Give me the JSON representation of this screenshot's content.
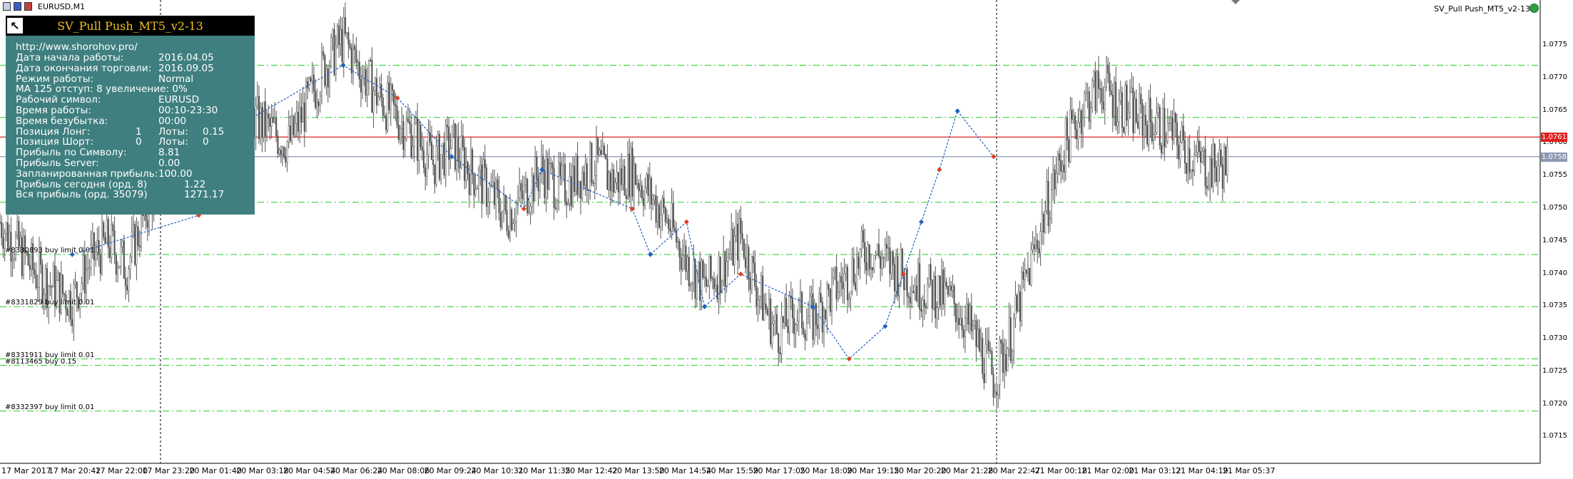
{
  "window": {
    "symbol_label": "EURUSD,M1",
    "ea_name": "SV_Pull Push_MT5_v2-13"
  },
  "panel": {
    "title": "SV_Pull Push_MT5_v2-13",
    "url": "http://www.shorohov.pro/",
    "rows": [
      {
        "label": "Дата начала работы:",
        "value": "2016.04.05"
      },
      {
        "label": "Дата окончания торговли:",
        "value": "2016.09.05"
      },
      {
        "label": "Режим работы:",
        "value": "Normal"
      },
      {
        "label": "МА 125 отступ: 8 увеличение: 0%",
        "value": ""
      },
      {
        "label": "Рабочий символ:",
        "value": "EURUSD"
      },
      {
        "label": "Время работы:",
        "value": "00:10-23:30"
      },
      {
        "label": "Время безубытка:",
        "value": "00:00"
      }
    ],
    "long": {
      "label": "Позиция Лонг:",
      "count": "1",
      "lots_label": "Лоты:",
      "lots": "0.15"
    },
    "short": {
      "label": "Позиция Шорт:",
      "count": "0",
      "lots_label": "Лоты:",
      "lots": "0"
    },
    "rows2": [
      {
        "label": "Прибыль по Символу:",
        "value": "8.81"
      },
      {
        "label": "Прибыль Server:",
        "value": "0.00"
      },
      {
        "label": "Запланированная прибыль:",
        "value": "100.00"
      }
    ],
    "today": {
      "label": "Прибыль сегодня (орд. 8)",
      "value": "1.22"
    },
    "total": {
      "label": "Вся прибыль (орд. 35079)",
      "value": "1271.17"
    }
  },
  "orders": [
    {
      "label": "#8330893 buy limit 0.01",
      "price": 1.0743
    },
    {
      "label": "#8331829 buy limit 0.01",
      "price": 1.0735
    },
    {
      "label": "#8331911 buy limit 0.01",
      "price": 1.0727
    },
    {
      "label": "#8113465 buy 0.15",
      "price": 1.0726
    },
    {
      "label": "#8332397 buy limit 0.01",
      "price": 1.0719
    }
  ],
  "chart_data": {
    "type": "candlestick",
    "symbol": "EURUSD",
    "timeframe": "M1",
    "x_ticks": [
      "17 Mar 2017",
      "17 Mar 20:42",
      "17 Mar 22:00",
      "17 Mar 23:20",
      "20 Mar 01:40",
      "20 Mar 03:18",
      "20 Mar 04:54",
      "20 Mar 06:24",
      "20 Mar 08:06",
      "20 Mar 09:24",
      "20 Mar 10:31",
      "20 Mar 11:35",
      "20 Mar 12:42",
      "20 Mar 13:50",
      "20 Mar 14:54",
      "20 Mar 15:59",
      "20 Mar 17:05",
      "20 Mar 18:09",
      "20 Mar 19:15",
      "20 Mar 20:20",
      "20 Mar 21:28",
      "20 Mar 22:47",
      "21 Mar 00:18",
      "21 Mar 02:00",
      "21 Mar 03:12",
      "21 Mar 04:19",
      "21 Mar 05:37"
    ],
    "y_ticks": [
      "1.0775",
      "1.0770",
      "1.0765",
      "1.0760",
      "1.0755",
      "1.0750",
      "1.0745",
      "1.0740",
      "1.0735",
      "1.0730",
      "1.0725",
      "1.0720",
      "1.0715"
    ],
    "ylim": [
      1.0711,
      1.0782
    ],
    "price_path": [
      [
        0,
        1.0748
      ],
      [
        1,
        1.0744
      ],
      [
        2,
        1.074
      ],
      [
        3,
        1.0738
      ],
      [
        4,
        1.0736
      ],
      [
        5,
        1.0742
      ],
      [
        6,
        1.0745
      ],
      [
        7,
        1.0741
      ],
      [
        8,
        1.0749
      ],
      [
        9,
        1.0756
      ],
      [
        10,
        1.0759
      ],
      [
        11,
        1.076
      ],
      [
        12,
        1.0762
      ],
      [
        13,
        1.0765
      ],
      [
        14,
        1.0764
      ],
      [
        15,
        1.0762
      ],
      [
        16,
        1.076
      ],
      [
        17,
        1.0766
      ],
      [
        18,
        1.0772
      ],
      [
        19,
        1.0776
      ],
      [
        20,
        1.0771
      ],
      [
        21,
        1.0767
      ],
      [
        22,
        1.0764
      ],
      [
        23,
        1.0761
      ],
      [
        24,
        1.0757
      ],
      [
        25,
        1.076
      ],
      [
        26,
        1.0756
      ],
      [
        27,
        1.0753
      ],
      [
        28,
        1.0749
      ],
      [
        29,
        1.0752
      ],
      [
        30,
        1.0756
      ],
      [
        31,
        1.0753
      ],
      [
        32,
        1.0755
      ],
      [
        33,
        1.0757
      ],
      [
        34,
        1.0754
      ],
      [
        35,
        1.0756
      ],
      [
        36,
        1.0752
      ],
      [
        37,
        1.0748
      ],
      [
        38,
        1.0742
      ],
      [
        39,
        1.0738
      ],
      [
        40,
        1.0741
      ],
      [
        41,
        1.0746
      ],
      [
        42,
        1.0737
      ],
      [
        43,
        1.0731
      ],
      [
        44,
        1.0734
      ],
      [
        45,
        1.0733
      ],
      [
        46,
        1.0737
      ],
      [
        47,
        1.074
      ],
      [
        48,
        1.0744
      ],
      [
        49,
        1.0742
      ],
      [
        50,
        1.074
      ],
      [
        51,
        1.0738
      ],
      [
        52,
        1.0737
      ],
      [
        53,
        1.0735
      ],
      [
        54,
        1.073
      ],
      [
        55,
        1.0724
      ],
      [
        56,
        1.0731
      ],
      [
        57,
        1.0741
      ],
      [
        58,
        1.0751
      ],
      [
        59,
        1.076
      ],
      [
        60,
        1.0766
      ],
      [
        61,
        1.0769
      ],
      [
        62,
        1.0766
      ],
      [
        63,
        1.0764
      ],
      [
        64,
        1.0763
      ],
      [
        65,
        1.0761
      ],
      [
        66,
        1.0758
      ],
      [
        67,
        1.0756
      ],
      [
        68,
        1.0757
      ]
    ],
    "trade_points": [
      [
        4,
        1.0743
      ],
      [
        11,
        1.0749
      ],
      [
        12,
        1.0757
      ],
      [
        14,
        1.0764
      ],
      [
        19,
        1.0772
      ],
      [
        22,
        1.0767
      ],
      [
        25,
        1.0758
      ],
      [
        29,
        1.075
      ],
      [
        30,
        1.0756
      ],
      [
        35,
        1.075
      ],
      [
        36,
        1.0743
      ],
      [
        38,
        1.0748
      ],
      [
        39,
        1.0735
      ],
      [
        41,
        1.074
      ],
      [
        45,
        1.0735
      ],
      [
        47,
        1.0727
      ],
      [
        49,
        1.0732
      ],
      [
        50,
        1.074
      ],
      [
        51,
        1.0748
      ],
      [
        52,
        1.0756
      ],
      [
        53,
        1.0765
      ],
      [
        55,
        1.0758
      ]
    ],
    "horizontal_lines": [
      {
        "price": 1.0761,
        "label": "1.0761",
        "color": "#e02020"
      },
      {
        "price": 1.0758,
        "label": "1.0758",
        "color": "#8a98b0"
      }
    ],
    "grid_lines": [
      1.0772,
      1.0764,
      1.0751,
      1.0743,
      1.0735,
      1.0727,
      1.0726,
      1.0719
    ],
    "grid": "dash-dot green",
    "colors": {
      "candles": "#555555",
      "trail": "#2060c0",
      "buy_marker": "#2060c0",
      "sell_marker": "#e04020",
      "grid": "#22cc22"
    }
  }
}
